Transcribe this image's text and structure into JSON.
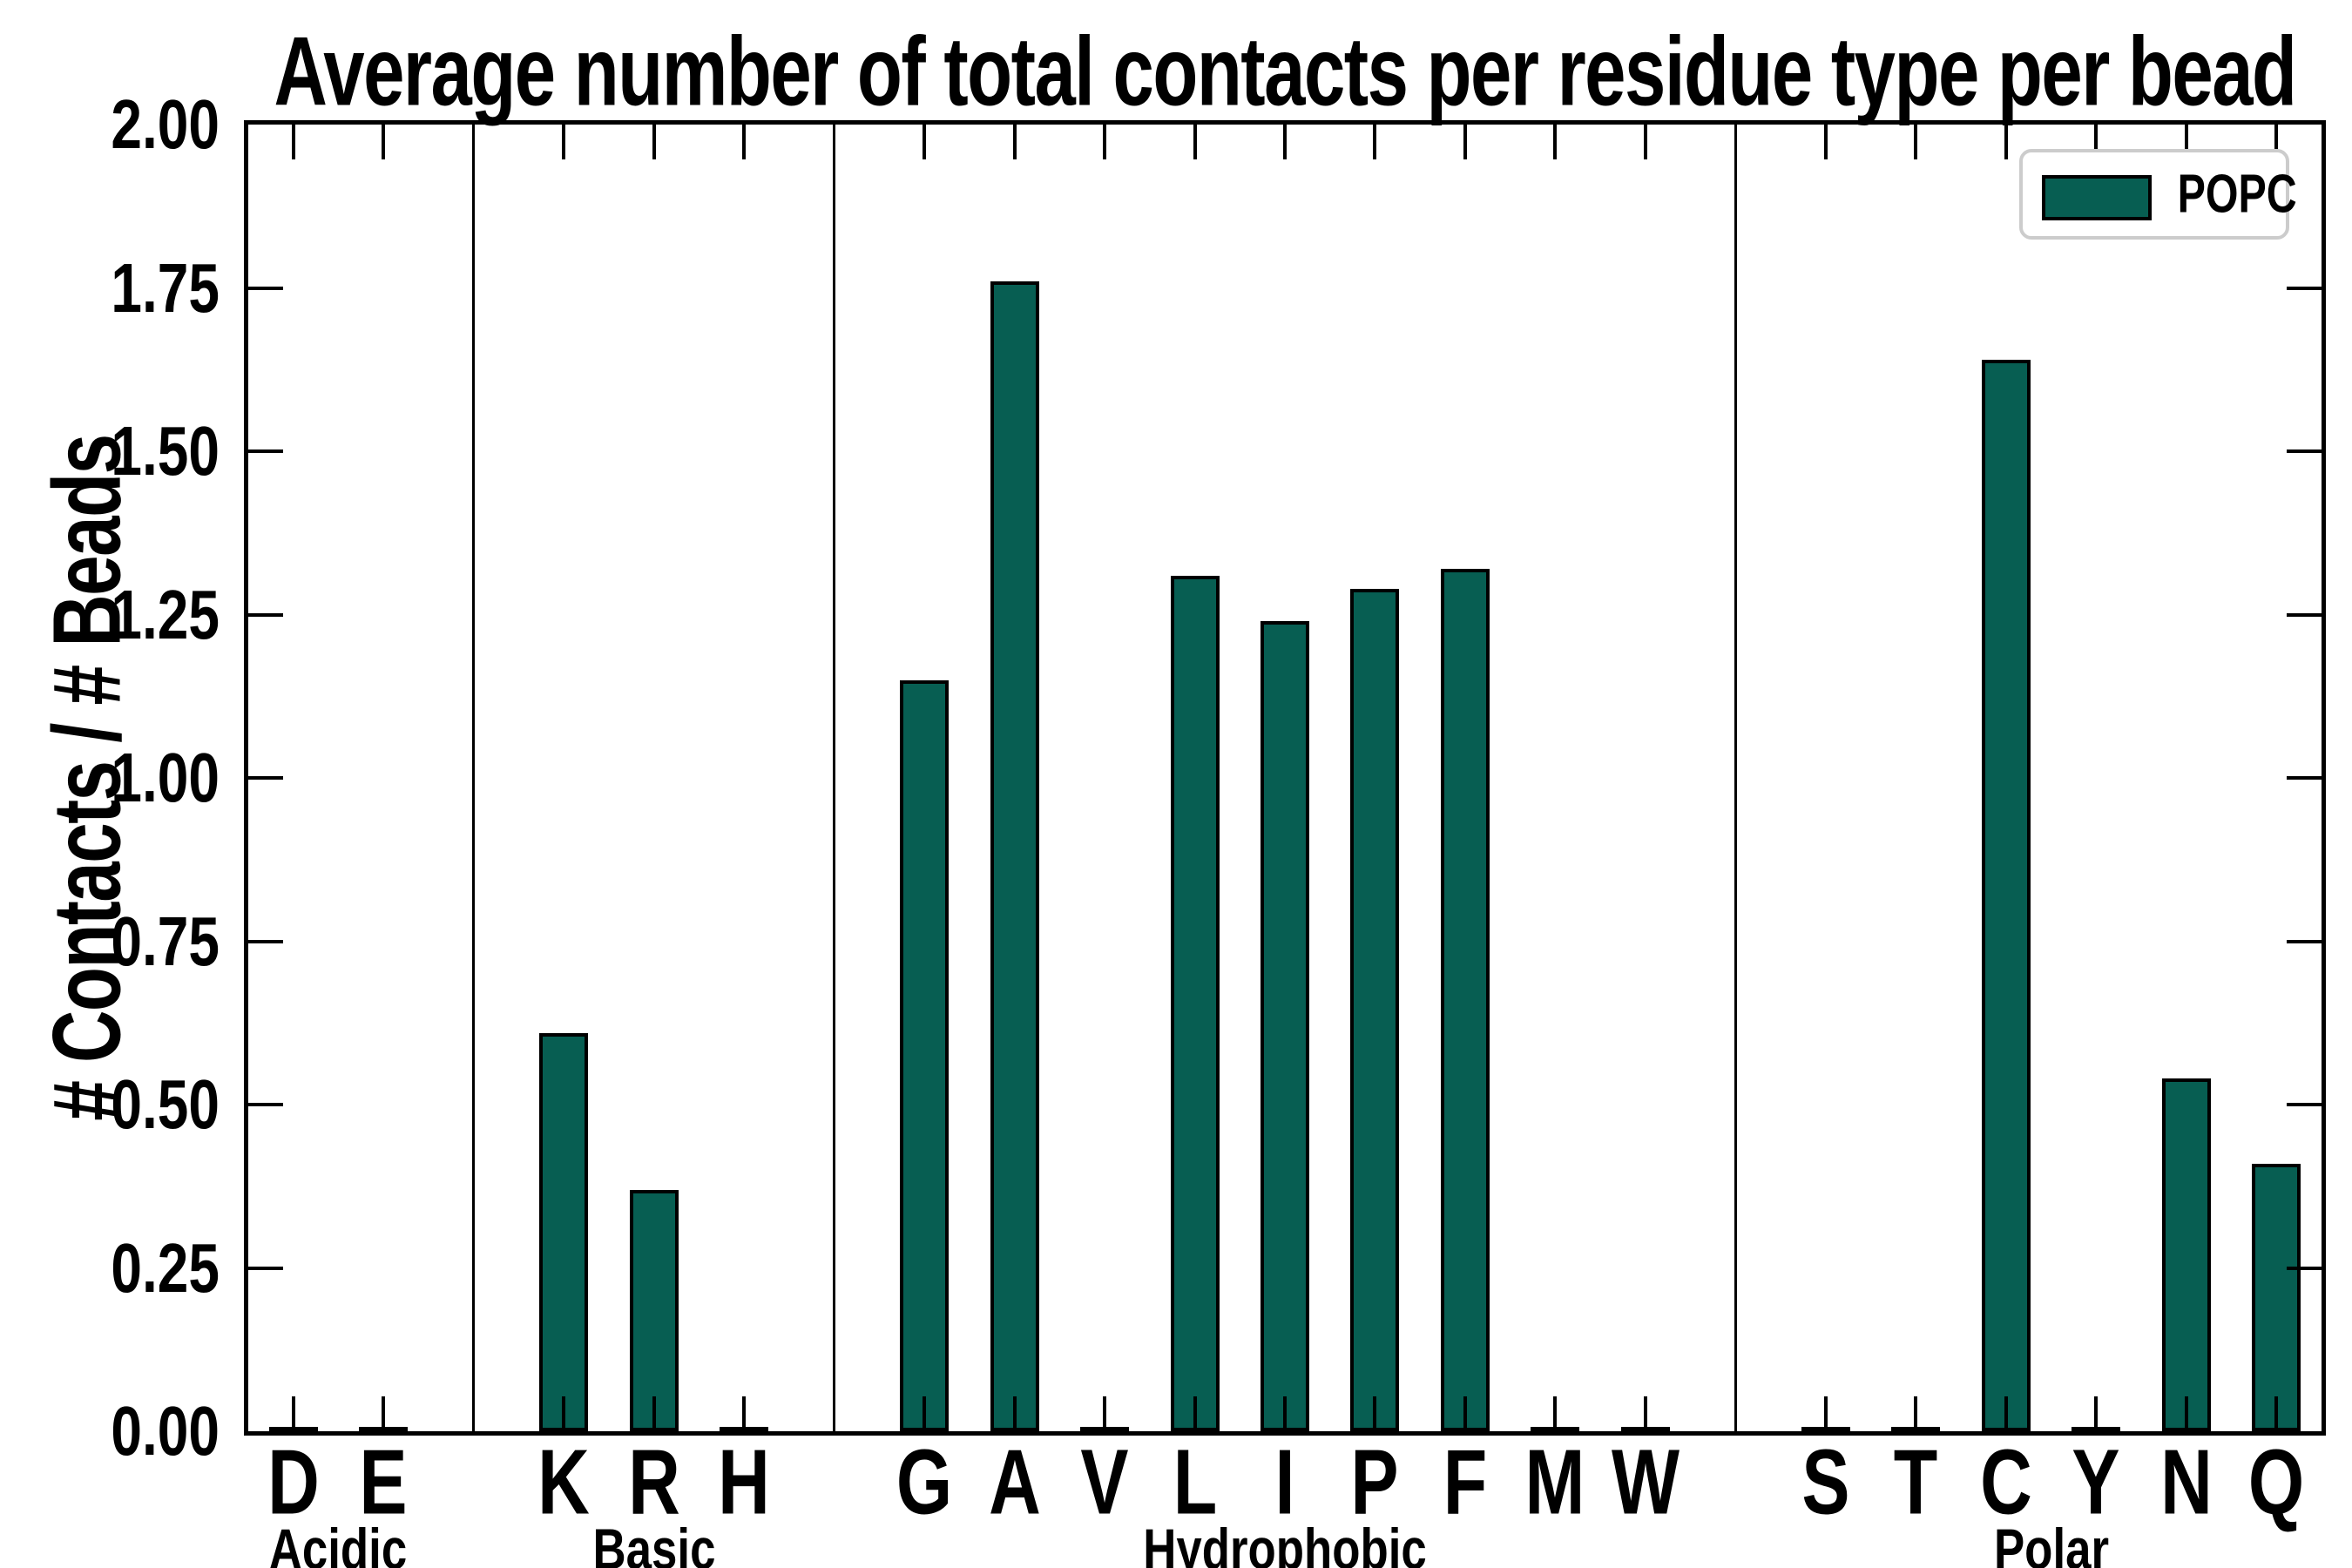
{
  "chart_data": {
    "type": "bar",
    "title": "Average number of total contacts per residue type per bead",
    "ylabel": "# Contacts / # Beads",
    "xlabel": "",
    "ylim": [
      0.0,
      2.0
    ],
    "ytick_step": 0.25,
    "ytick_labels": [
      "0.00",
      "0.25",
      "0.50",
      "0.75",
      "1.00",
      "1.25",
      "1.50",
      "1.75",
      "2.00"
    ],
    "grid": "off",
    "legend": {
      "label": "POPC",
      "position": "upper right"
    },
    "colors": {
      "bar_fill": "#075e52",
      "bar_edge": "#000000",
      "axis": "#000000",
      "legend_border": "#cccccc",
      "background": "#ffffff"
    },
    "categories": [
      "D",
      "E",
      "K",
      "R",
      "H",
      "G",
      "A",
      "V",
      "L",
      "I",
      "P",
      "F",
      "M",
      "W",
      "S",
      "T",
      "C",
      "Y",
      "N",
      "Q"
    ],
    "values": [
      0.0,
      0.0,
      0.61,
      0.37,
      0.0,
      1.15,
      1.76,
      0.0,
      1.31,
      1.24,
      1.29,
      1.32,
      0.0,
      0.0,
      0.0,
      0.0,
      1.64,
      0.0,
      0.54,
      0.41
    ],
    "groups": [
      {
        "label": "Acidic",
        "bars": [
          {
            "label": "D",
            "value": 0.0
          },
          {
            "label": "E",
            "value": 0.0
          }
        ]
      },
      {
        "label": "Basic",
        "bars": [
          {
            "label": "K",
            "value": 0.61
          },
          {
            "label": "R",
            "value": 0.37
          },
          {
            "label": "H",
            "value": 0.0
          }
        ]
      },
      {
        "label": "Hydrophobic",
        "bars": [
          {
            "label": "G",
            "value": 1.15
          },
          {
            "label": "A",
            "value": 1.76
          },
          {
            "label": "V",
            "value": 0.0
          },
          {
            "label": "L",
            "value": 1.31
          },
          {
            "label": "I",
            "value": 1.24
          },
          {
            "label": "P",
            "value": 1.29
          },
          {
            "label": "F",
            "value": 1.32
          },
          {
            "label": "M",
            "value": 0.0
          },
          {
            "label": "W",
            "value": 0.0
          }
        ]
      },
      {
        "label": "Polar",
        "bars": [
          {
            "label": "S",
            "value": 0.0
          },
          {
            "label": "T",
            "value": 0.0
          },
          {
            "label": "C",
            "value": 1.64
          },
          {
            "label": "Y",
            "value": 0.0
          },
          {
            "label": "N",
            "value": 0.54
          },
          {
            "label": "Q",
            "value": 0.41
          }
        ]
      }
    ]
  }
}
